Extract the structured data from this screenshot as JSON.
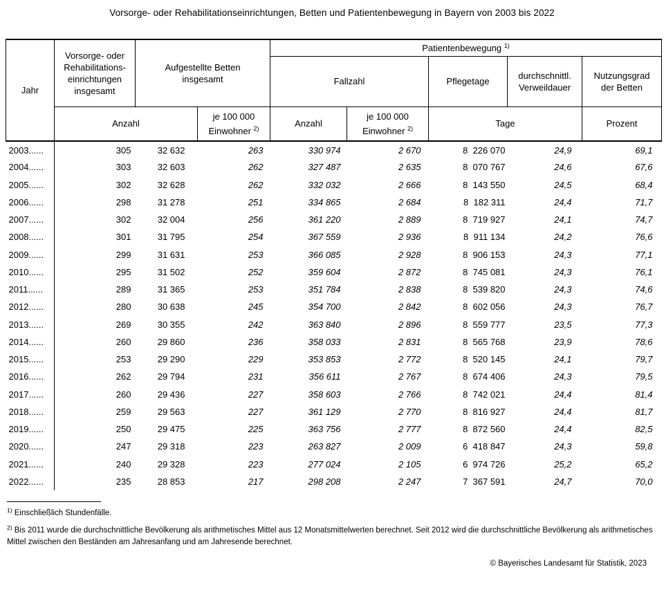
{
  "title": "Vorsorge- oder Rehabilitationseinrichtungen, Betten und Patientenbewegung in Bayern von 2003 bis 2022",
  "table": {
    "header": {
      "jahr": "Jahr",
      "einrichtungen": "Vorsorge- oder\nRehabilitations-\neinrichtungen\ninsgesamt",
      "betten": "Aufgestellte Betten\ninsgesamt",
      "patientenbewegung": "Patientenbewegung",
      "patientenbewegung_fn": "1)",
      "fallzahl": "Fallzahl",
      "pflegetage": "Pflegetage",
      "verweildauer": "durchschnittl.\nVerweildauer",
      "nutzungsgrad": "Nutzungsgrad\nder Betten",
      "anzahl": "Anzahl",
      "je100k_line1": "je 100 000",
      "je100k_line2": "Einwohner",
      "je100k_fn": "2)",
      "tage": "Tage",
      "prozent": "Prozent"
    },
    "rows": [
      {
        "jahr": "2003......",
        "einrichtungen": "305",
        "betten": "32 632",
        "betten_je100k": "263",
        "fallzahl": "330 974",
        "fallzahl_je100k": "2 670",
        "pflegetage": "8  226 070",
        "verweildauer": "24,9",
        "nutzungsgrad": "69,1"
      },
      {
        "jahr": "2004......",
        "einrichtungen": "303",
        "betten": "32 603",
        "betten_je100k": "262",
        "fallzahl": "327 487",
        "fallzahl_je100k": "2 635",
        "pflegetage": "8  070 767",
        "verweildauer": "24,6",
        "nutzungsgrad": "67,6"
      },
      {
        "jahr": "2005......",
        "einrichtungen": "302",
        "betten": "32 628",
        "betten_je100k": "262",
        "fallzahl": "332 032",
        "fallzahl_je100k": "2 666",
        "pflegetage": "8  143 550",
        "verweildauer": "24,5",
        "nutzungsgrad": "68,4"
      },
      {
        "jahr": "2006......",
        "einrichtungen": "298",
        "betten": "31 278",
        "betten_je100k": "251",
        "fallzahl": "334 865",
        "fallzahl_je100k": "2 684",
        "pflegetage": "8  182 311",
        "verweildauer": "24,4",
        "nutzungsgrad": "71,7"
      },
      {
        "jahr": "2007......",
        "einrichtungen": "302",
        "betten": "32 004",
        "betten_je100k": "256",
        "fallzahl": "361 220",
        "fallzahl_je100k": "2 889",
        "pflegetage": "8  719 927",
        "verweildauer": "24,1",
        "nutzungsgrad": "74,7"
      },
      {
        "jahr": "2008......",
        "einrichtungen": "301",
        "betten": "31 795",
        "betten_je100k": "254",
        "fallzahl": "367 559",
        "fallzahl_je100k": "2 936",
        "pflegetage": "8  911 134",
        "verweildauer": "24,2",
        "nutzungsgrad": "76,6"
      },
      {
        "jahr": "2009......",
        "einrichtungen": "299",
        "betten": "31 631",
        "betten_je100k": "253",
        "fallzahl": "366 085",
        "fallzahl_je100k": "2 928",
        "pflegetage": "8  906 153",
        "verweildauer": "24,3",
        "nutzungsgrad": "77,1"
      },
      {
        "jahr": "2010......",
        "einrichtungen": "295",
        "betten": "31 502",
        "betten_je100k": "252",
        "fallzahl": "359 604",
        "fallzahl_je100k": "2 872",
        "pflegetage": "8  745 081",
        "verweildauer": "24,3",
        "nutzungsgrad": "76,1"
      },
      {
        "jahr": "2011......",
        "einrichtungen": "289",
        "betten": "31 365",
        "betten_je100k": "253",
        "fallzahl": "351 784",
        "fallzahl_je100k": "2 838",
        "pflegetage": "8  539 820",
        "verweildauer": "24,3",
        "nutzungsgrad": "74,6"
      },
      {
        "jahr": "2012......",
        "einrichtungen": "280",
        "betten": "30 638",
        "betten_je100k": "245",
        "fallzahl": "354 700",
        "fallzahl_je100k": "2 842",
        "pflegetage": "8  602 056",
        "verweildauer": "24,3",
        "nutzungsgrad": "76,7"
      },
      {
        "jahr": "2013......",
        "einrichtungen": "269",
        "betten": "30 355",
        "betten_je100k": "242",
        "fallzahl": "363 840",
        "fallzahl_je100k": "2 896",
        "pflegetage": "8  559 777",
        "verweildauer": "23,5",
        "nutzungsgrad": "77,3"
      },
      {
        "jahr": "2014......",
        "einrichtungen": "260",
        "betten": "29 860",
        "betten_je100k": "236",
        "fallzahl": "358 033",
        "fallzahl_je100k": "2 831",
        "pflegetage": "8  565 768",
        "verweildauer": "23,9",
        "nutzungsgrad": "78,6"
      },
      {
        "jahr": "2015......",
        "einrichtungen": "253",
        "betten": "29 290",
        "betten_je100k": "229",
        "fallzahl": "353 853",
        "fallzahl_je100k": "2 772",
        "pflegetage": "8  520 145",
        "verweildauer": "24,1",
        "nutzungsgrad": "79,7"
      },
      {
        "jahr": "2016......",
        "einrichtungen": "262",
        "betten": "29 794",
        "betten_je100k": "231",
        "fallzahl": "356 611",
        "fallzahl_je100k": "2 767",
        "pflegetage": "8  674 406",
        "verweildauer": "24,3",
        "nutzungsgrad": "79,5"
      },
      {
        "jahr": "2017......",
        "einrichtungen": "260",
        "betten": "29 436",
        "betten_je100k": "227",
        "fallzahl": "358 603",
        "fallzahl_je100k": "2 766",
        "pflegetage": "8  742 021",
        "verweildauer": "24,4",
        "nutzungsgrad": "81,4"
      },
      {
        "jahr": "2018......",
        "einrichtungen": "259",
        "betten": "29 563",
        "betten_je100k": "227",
        "fallzahl": "361 129",
        "fallzahl_je100k": "2 770",
        "pflegetage": "8  816 927",
        "verweildauer": "24,4",
        "nutzungsgrad": "81,7"
      },
      {
        "jahr": "2019......",
        "einrichtungen": "250",
        "betten": "29 475",
        "betten_je100k": "225",
        "fallzahl": "363 756",
        "fallzahl_je100k": "2 777",
        "pflegetage": "8  872 560",
        "verweildauer": "24,4",
        "nutzungsgrad": "82,5"
      },
      {
        "jahr": "2020......",
        "einrichtungen": "247",
        "betten": "29 318",
        "betten_je100k": "223",
        "fallzahl": "263 827",
        "fallzahl_je100k": "2 009",
        "pflegetage": "6  418 847",
        "verweildauer": "24,3",
        "nutzungsgrad": "59,8"
      },
      {
        "jahr": "2021......",
        "einrichtungen": "240",
        "betten": "29 328",
        "betten_je100k": "223",
        "fallzahl": "277 024",
        "fallzahl_je100k": "2 105",
        "pflegetage": "6  974 726",
        "verweildauer": "25,2",
        "nutzungsgrad": "65,2"
      },
      {
        "jahr": "2022......",
        "einrichtungen": "235",
        "betten": "28 853",
        "betten_je100k": "217",
        "fallzahl": "298 208",
        "fallzahl_je100k": "2 247",
        "pflegetage": "7  367 591",
        "verweildauer": "24,7",
        "nutzungsgrad": "70,0"
      }
    ]
  },
  "footnotes": {
    "fn1_marker": "1)",
    "fn1_text": "Einschließlich Stundenfälle.",
    "fn2_marker": "2)",
    "fn2_text": "Bis 2011 wurde die durchschnittliche Bevölkerung als arithmetisches Mittel aus 12 Monatsmittelwerten berechnet. Seit 2012 wird die durchschnittliche Bevölkerung als arithmetisches Mittel zwischen den Beständen am Jahresanfang und am Jahresende berechnet."
  },
  "copyright": "© Bayerisches Landesamt für Statistik, 2023"
}
